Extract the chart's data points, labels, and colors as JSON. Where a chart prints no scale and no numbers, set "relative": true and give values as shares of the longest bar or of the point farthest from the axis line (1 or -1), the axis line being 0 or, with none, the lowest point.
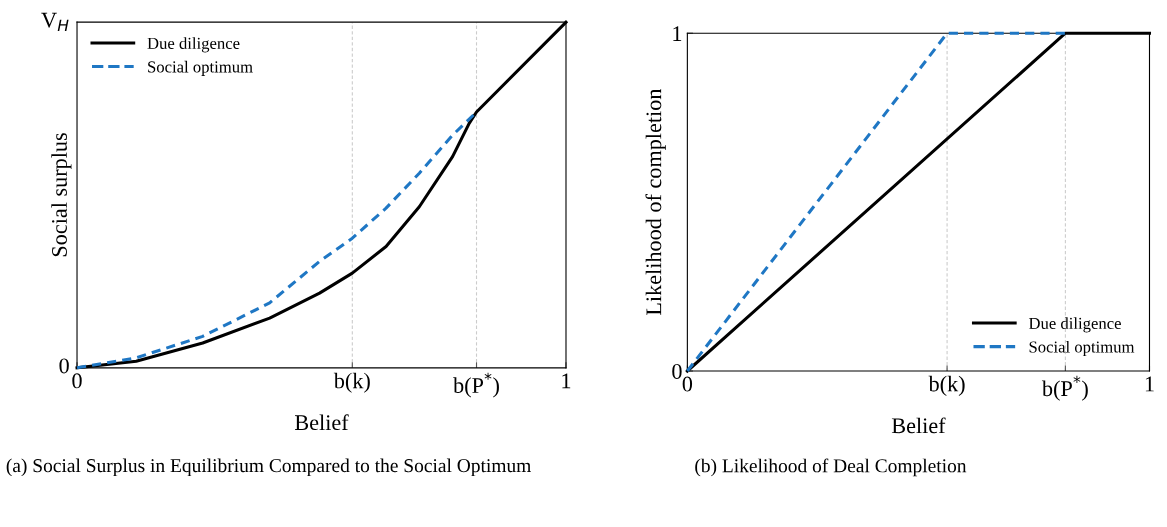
{
  "chart_data": [
    {
      "type": "line",
      "title": "(a) Social Surplus in Equilibrium Compared to the Social Optimum",
      "xlabel": "Belief",
      "ylabel": "Social surplus",
      "xlim": [
        0,
        1
      ],
      "relative": true,
      "annotations": [
        "0",
        "V$_{H}$"
      ],
      "xticks": [
        0,
        {
          "value": 0.563,
          "label": "b(k)"
        },
        {
          "value": 0.817,
          "label": "b(P$^{*}$)"
        },
        1
      ],
      "series": [
        {
          "name": "Due diligence",
          "color": "#000000",
          "line_style": "solid",
          "x": [
            0,
            0.121,
            0.257,
            0.394,
            0.496,
            0.563,
            0.632,
            0.7,
            0.768,
            0.802,
            0.817,
            1
          ],
          "values": [
            0,
            0.019,
            0.072,
            0.144,
            0.216,
            0.274,
            0.351,
            0.466,
            0.611,
            0.707,
            0.74,
            1
          ]
        },
        {
          "name": "Social optimum",
          "color": "#1f77c4",
          "line_style": "dashed",
          "x": [
            0,
            0.121,
            0.257,
            0.394,
            0.496,
            0.563,
            0.632,
            0.7,
            0.768,
            0.817
          ],
          "values": [
            0,
            0.029,
            0.091,
            0.188,
            0.308,
            0.375,
            0.462,
            0.563,
            0.673,
            0.74
          ]
        }
      ],
      "ref_lines": [
        {
          "axis": "x",
          "value": 0.563,
          "color": "#cccccc",
          "line_style": "dashed"
        },
        {
          "axis": "x",
          "value": 0.817,
          "color": "#cccccc",
          "line_style": "dashed"
        }
      ],
      "grid": false,
      "legend": "top left",
      "marker": "none"
    },
    {
      "type": "line",
      "title": "(b) Likelihood of Deal Completion",
      "xlabel": "Belief",
      "ylabel": "Likelihood of completion",
      "xlim": [
        0,
        1
      ],
      "ylim": [
        0,
        1
      ],
      "xticks": [
        0,
        {
          "value": 0.562,
          "label": "b(k)"
        },
        {
          "value": 0.818,
          "label": "b(P$^{*}$)"
        },
        1
      ],
      "yticks": [
        0,
        1
      ],
      "series": [
        {
          "name": "Due diligence",
          "color": "#000000",
          "line_style": "solid",
          "x": [
            0,
            0.818,
            1
          ],
          "values": [
            0,
            1,
            1
          ]
        },
        {
          "name": "Social optimum",
          "color": "#1f77c4",
          "line_style": "dashed",
          "x": [
            0,
            0.562,
            0.818
          ],
          "values": [
            0,
            1,
            1
          ]
        }
      ],
      "ref_lines": [
        {
          "axis": "x",
          "value": 0.562,
          "color": "#cccccc",
          "line_style": "dashed"
        },
        {
          "axis": "x",
          "value": 0.818,
          "color": "#cccccc",
          "line_style": "dashed"
        }
      ],
      "grid": false,
      "legend": "bottom right",
      "marker": "none"
    }
  ]
}
